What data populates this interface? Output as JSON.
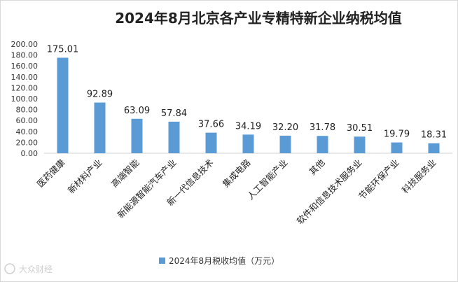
{
  "chart_data": {
    "type": "bar",
    "title": "2024年8月北京各产业专精特新企业纳税均值",
    "categories": [
      "医药健康",
      "新材料产业",
      "高端智能",
      "新能源智能汽车产业",
      "新一代信息技术",
      "集成电路",
      "人工智能产业",
      "其他",
      "软件和信息技术服务业",
      "节能环保产业",
      "科技服务业"
    ],
    "series": [
      {
        "name": "2024年8月税收均值（万元）",
        "values": [
          175.01,
          92.89,
          63.09,
          57.84,
          37.66,
          34.19,
          32.2,
          31.78,
          30.51,
          19.79,
          18.31
        ],
        "labels": [
          "175.01",
          "92.89",
          "63.09",
          "57.84",
          "37.66",
          "34.19",
          "32.20",
          "31.78",
          "30.51",
          "19.79",
          "18.31"
        ]
      }
    ],
    "yticks": [
      "0.00",
      "20.00",
      "40.00",
      "60.00",
      "80.00",
      "100.00",
      "120.00",
      "140.00",
      "160.00",
      "180.00",
      "200.00"
    ],
    "ylim": [
      0,
      200
    ],
    "xlabel": "",
    "ylabel": "",
    "legend_position": "bottom",
    "grid": false,
    "bar_color": "#5b9bd5"
  },
  "watermark": "大众财经"
}
